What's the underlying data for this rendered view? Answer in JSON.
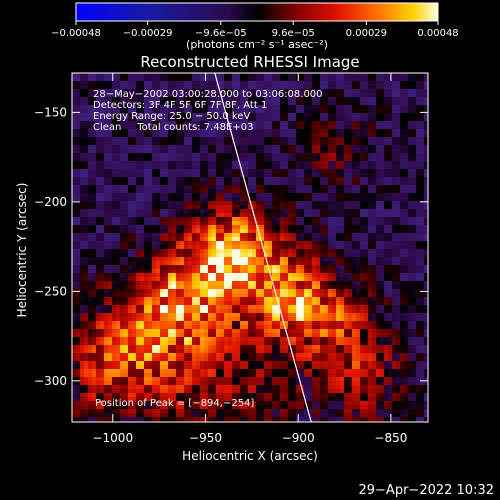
{
  "chart_data": {
    "type": "heatmap",
    "title": "Reconstructed RHESSI Image",
    "xlabel": "Heliocentric X (arcsec)",
    "ylabel": "Heliocentric Y (arcsec)",
    "xlim": [
      -1022,
      -830
    ],
    "ylim": [
      -323,
      -128
    ],
    "x_ticks": [
      -1000,
      -950,
      -900,
      -850
    ],
    "x_tick_labels": [
      "−1000",
      "−950",
      "−900",
      "−850"
    ],
    "y_ticks": [
      -150,
      -200,
      -250,
      -300
    ],
    "y_tick_labels": [
      "−150",
      "−200",
      "−250",
      "−300"
    ],
    "colorbar": {
      "ticks": [
        -0.00048,
        -0.00029,
        -9.6e-05,
        9.6e-05,
        0.00029,
        0.00048
      ],
      "tick_labels": [
        "−0.00048",
        "−0.00029",
        "−9.6e−05",
        "9.6e−05",
        "0.00029",
        "0.00048"
      ],
      "unit_label": "(photons cm⁻² s⁻¹ asec⁻²)",
      "range": [
        -0.00048,
        0.00048
      ]
    },
    "annotations": [
      "28−May−2002 03:00:28.000 to 03:06:08.000",
      "Detectors: 3F 4F 5F 6F 7F 8F, Att 1",
      "Energy Range: 25.0 − 50.0 keV",
      "Clean     Total counts: 7.48E+03"
    ],
    "peak_label": "Position of Peak = [−894,−254]",
    "peak": [
      -894,
      -254
    ],
    "limb_line": [
      [
        -945,
        -128
      ],
      [
        -893,
        -323
      ]
    ],
    "emission_sources": [
      {
        "x": -935,
        "y": -228,
        "amplitude": 1.0,
        "sigma": 17
      },
      {
        "x": -960,
        "y": -258,
        "amplitude": 0.9,
        "sigma": 20
      },
      {
        "x": -905,
        "y": -254,
        "amplitude": 0.8,
        "sigma": 18
      },
      {
        "x": -990,
        "y": -278,
        "amplitude": 0.55,
        "sigma": 19
      },
      {
        "x": -1005,
        "y": -300,
        "amplitude": 0.4,
        "sigma": 15
      },
      {
        "x": -880,
        "y": -270,
        "amplitude": 0.45,
        "sigma": 17
      },
      {
        "x": -865,
        "y": -300,
        "amplitude": 0.4,
        "sigma": 16
      },
      {
        "x": -960,
        "y": -305,
        "amplitude": 0.35,
        "sigma": 17
      },
      {
        "x": -920,
        "y": -305,
        "amplitude": 0.3,
        "sigma": 15
      },
      {
        "x": -880,
        "y": -170,
        "amplitude": 0.25,
        "sigma": 14
      }
    ],
    "background_level": 0.22,
    "colors": {
      "axis": "#ffffff",
      "background": "#000000"
    }
  },
  "footer": {
    "timestamp": "29−Apr−2022 10:32"
  }
}
